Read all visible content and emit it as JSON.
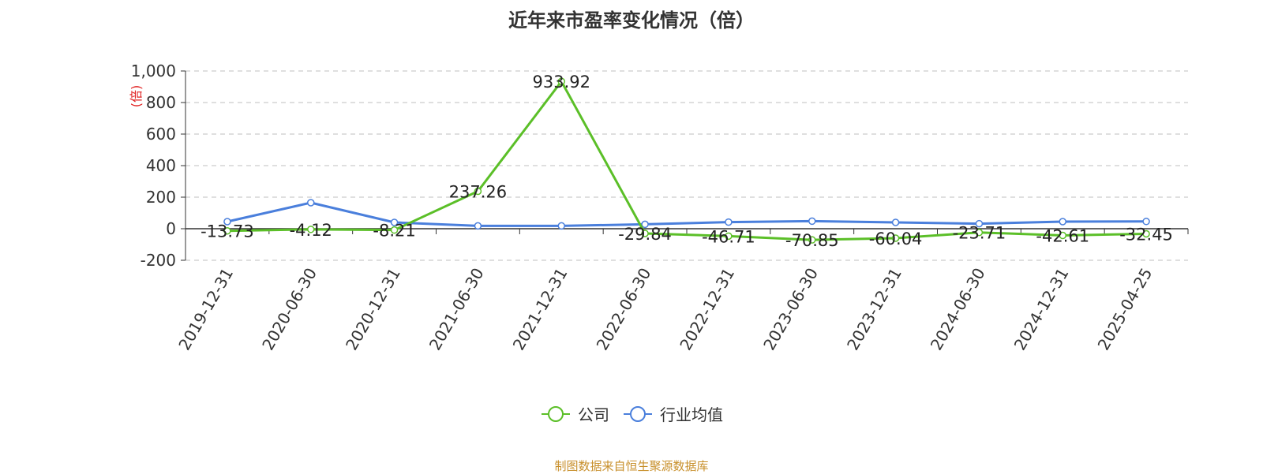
{
  "chart_data": {
    "type": "line",
    "title": "近年来市盈率变化情况（倍）",
    "ylabel": "(倍)",
    "xlabel": "",
    "categories": [
      "2019-12-31",
      "2020-06-30",
      "2020-12-31",
      "2021-06-30",
      "2021-12-31",
      "2022-06-30",
      "2022-12-31",
      "2023-06-30",
      "2023-12-31",
      "2024-06-30",
      "2024-12-31",
      "2025-04-25"
    ],
    "ylim": [
      -200,
      1000
    ],
    "yticks": [
      -200,
      0,
      200,
      400,
      600,
      800,
      1000
    ],
    "ytick_labels": [
      "-200",
      "0",
      "200",
      "400",
      "600",
      "800",
      "1,000"
    ],
    "grid": "horizontal dashed",
    "legend_position": "bottom",
    "series": [
      {
        "name": "公司",
        "color": "#5bbf28",
        "values": [
          -13.73,
          -4.12,
          -8.21,
          237.26,
          933.92,
          -29.84,
          -46.71,
          -70.85,
          -60.04,
          -23.71,
          -42.61,
          -32.45
        ],
        "labels": [
          "-13.73",
          "-4.12",
          "-8.21",
          "237.26",
          "933.92",
          "-29.84",
          "-46.71",
          "-70.85",
          "-60.04",
          "-23.71",
          "-42.61",
          "-32.45"
        ]
      },
      {
        "name": "行业均值",
        "color": "#4a7fdc",
        "values": [
          45,
          165,
          40,
          18,
          18,
          28,
          42,
          48,
          40,
          32,
          45,
          46
        ]
      }
    ]
  },
  "footer": {
    "source": "制图数据来自恒生聚源数据库"
  }
}
